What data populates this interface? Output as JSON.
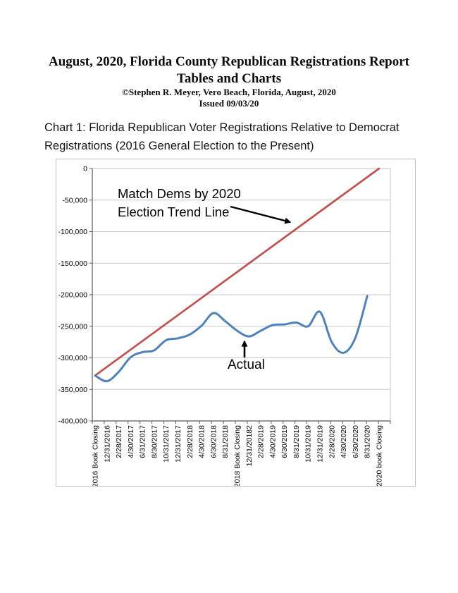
{
  "page": {
    "title_line1": "August, 2020, Florida County Republican Registrations Report",
    "title_line2": "Tables and Charts",
    "byline": "©Stephen R. Meyer, Vero Beach, Florida, August, 2020",
    "issued": "Issued 09/03/20",
    "chart_heading": "Chart 1: Florida Republican Voter Registrations Relative to Democrat Registrations (2016 General Election to the Present)"
  },
  "chart_data": {
    "type": "line",
    "title": "Chart 1: Florida Republican Voter Registrations Relative to Democrat Registrations (2016 General Election to the Present)",
    "xlabel": "",
    "ylabel": "",
    "ylim": [
      -400000,
      0
    ],
    "y_tick_step": 50000,
    "grid": true,
    "legend": "none",
    "y_tick_labels": [
      "0",
      "-50,000",
      "-100,000",
      "-150,000",
      "-200,000",
      "-250,000",
      "-300,000",
      "-350,000",
      "-400,000"
    ],
    "categories": [
      "2016 Book Closing",
      "12/31/2016",
      "2/28/2017",
      "4/30/2017",
      "6/31/2017",
      "8/30/2017",
      "10/31/2017",
      "12/31/2017",
      "2/28/2018",
      "4/30/2018",
      "6/30/2018",
      "8/31/2018",
      "2018 Book Closing",
      "12/31/20182",
      "2/28/2019",
      "4/30/2019",
      "6/30/2019",
      "8/31/2019",
      "10/31/2019",
      "12/31/2019",
      "2/28/2020",
      "4/30/2020",
      "6/30/2020",
      "8/31/2020",
      "2020 book Closing"
    ],
    "series": [
      {
        "name": "Match Dems by 2020 Election Trend Line",
        "color": "#c0504d",
        "shape": "linear-trend",
        "start": -328000,
        "end": 0
      },
      {
        "name": "Actual",
        "color": "#4f81bd",
        "shape": "smooth",
        "values": [
          -328000,
          -337000,
          -322000,
          -299000,
          -291000,
          -288000,
          -272000,
          -269000,
          -263000,
          -249000,
          -229000,
          -242000,
          -257000,
          -266000,
          -257000,
          -248000,
          -247000,
          -244000,
          -250000,
          -227000,
          -275000,
          -292000,
          -268000,
          -202000,
          null
        ]
      }
    ],
    "annotations": {
      "trend_line1": "Match Dems by 2020",
      "trend_line2": "Election Trend Line",
      "actual": "Actual"
    }
  }
}
